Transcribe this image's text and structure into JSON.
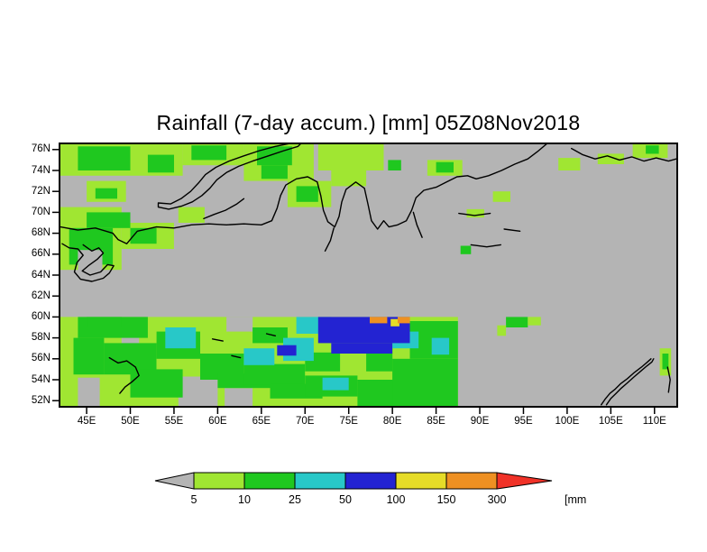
{
  "title": "Rainfall (7-day accum.) [mm] 05Z08Nov2018",
  "axes": {
    "lat": {
      "ticks": [
        {
          "label": "76N",
          "value": 76
        },
        {
          "label": "74N",
          "value": 74
        },
        {
          "label": "72N",
          "value": 72
        },
        {
          "label": "70N",
          "value": 70
        },
        {
          "label": "68N",
          "value": 68
        },
        {
          "label": "66N",
          "value": 66
        },
        {
          "label": "64N",
          "value": 64
        },
        {
          "label": "62N",
          "value": 62
        },
        {
          "label": "60N",
          "value": 60
        },
        {
          "label": "58N",
          "value": 58
        },
        {
          "label": "56N",
          "value": 56
        },
        {
          "label": "54N",
          "value": 54
        },
        {
          "label": "52N",
          "value": 52
        }
      ]
    },
    "lon": {
      "ticks": [
        {
          "label": "45E",
          "value": 45
        },
        {
          "label": "50E",
          "value": 50
        },
        {
          "label": "55E",
          "value": 55
        },
        {
          "label": "60E",
          "value": 60
        },
        {
          "label": "65E",
          "value": 65
        },
        {
          "label": "70E",
          "value": 70
        },
        {
          "label": "75E",
          "value": 75
        },
        {
          "label": "80E",
          "value": 80
        },
        {
          "label": "85E",
          "value": 85
        },
        {
          "label": "90E",
          "value": 90
        },
        {
          "label": "95E",
          "value": 95
        },
        {
          "label": "100E",
          "value": 100
        },
        {
          "label": "105E",
          "value": 105
        },
        {
          "label": "110E",
          "value": 110
        }
      ]
    }
  },
  "legend": {
    "values": [
      "5",
      "10",
      "25",
      "50",
      "100",
      "150",
      "300"
    ],
    "unit": "[mm]",
    "under_color": "#b4b4b4",
    "over_color": "#f03228",
    "segment_colors": [
      "#a0e632",
      "#1fc81f",
      "#28c8c8",
      "#2323d2",
      "#e6dc28",
      "#ee9022"
    ]
  },
  "colors": {
    "background": "#ffffff",
    "frame": "#000000",
    "coastline": "#000000",
    "no_data": "#b4b4b4"
  },
  "palette": {
    "gray": "#b4b4b4",
    "lightgreen": "#a0e632",
    "green": "#1fc81f",
    "cyan": "#28c8c8",
    "blue": "#2323d2",
    "yellow": "#e6dc28",
    "orange": "#ee9022",
    "red": "#f03228"
  },
  "chart_data": {
    "type": "heatmap",
    "title": "Rainfall (7-day accum.) [mm] 05Z08Nov2018",
    "variable": "Rainfall (7-day accum.)",
    "unit": "mm",
    "valid_time": "05Z08Nov2018",
    "x_axis": {
      "tick_labels": [
        "45E",
        "50E",
        "55E",
        "60E",
        "65E",
        "70E",
        "75E",
        "80E",
        "85E",
        "90E",
        "95E",
        "100E",
        "105E",
        "110E"
      ],
      "range_deg_e": [
        42,
        112.5
      ]
    },
    "y_axis": {
      "tick_labels": [
        "76N",
        "74N",
        "72N",
        "70N",
        "68N",
        "66N",
        "64N",
        "62N",
        "60N",
        "58N",
        "56N",
        "54N",
        "52N"
      ],
      "range_deg_n": [
        51.5,
        76.5
      ]
    },
    "color_bins_mm": [
      5,
      10,
      25,
      50,
      100,
      150,
      300
    ],
    "legend_position": "bottom",
    "grid": false,
    "patches_format": [
      "level",
      "lon_min",
      "lon_max",
      "lat_min",
      "lat_max"
    ],
    "patches": [
      [
        "lightgreen",
        42,
        87.5,
        51.5,
        60
      ],
      [
        "gray",
        55.5,
        60,
        51.5,
        54.3
      ],
      [
        "gray",
        44,
        46.5,
        51.5,
        54.2
      ],
      [
        "gray",
        60.8,
        64,
        51.5,
        53.2
      ],
      [
        "gray",
        61,
        64,
        58.6,
        60
      ],
      [
        "gray",
        49,
        51,
        57.4,
        58.8
      ],
      [
        "green",
        43.5,
        47,
        54.5,
        58
      ],
      [
        "green",
        44,
        52,
        58,
        60
      ],
      [
        "green",
        47,
        53,
        54.5,
        57.5
      ],
      [
        "green",
        50,
        56,
        52.3,
        55
      ],
      [
        "green",
        53,
        58,
        56,
        58.6
      ],
      [
        "green",
        58,
        63,
        54,
        56.5
      ],
      [
        "green",
        60,
        66,
        53.2,
        54.6
      ],
      [
        "green",
        63,
        70,
        53.5,
        55.5
      ],
      [
        "green",
        66,
        72,
        52.2,
        53.6
      ],
      [
        "green",
        64,
        68,
        57.5,
        59
      ],
      [
        "green",
        70,
        76,
        52.4,
        54.4
      ],
      [
        "green",
        76,
        81,
        51.5,
        54
      ],
      [
        "green",
        80,
        87.5,
        51.5,
        56
      ],
      [
        "green",
        82,
        87.5,
        56,
        59.6
      ],
      [
        "green",
        77,
        80,
        54.8,
        57
      ],
      [
        "green",
        70,
        74,
        54.8,
        56.6
      ],
      [
        "green",
        45,
        49,
        59,
        60
      ],
      [
        "cyan",
        54,
        57.5,
        57,
        59
      ],
      [
        "cyan",
        63,
        66.5,
        55.4,
        57
      ],
      [
        "cyan",
        67.5,
        71,
        55.8,
        58
      ],
      [
        "cyan",
        72,
        75,
        53,
        54.2
      ],
      [
        "cyan",
        69,
        73,
        58.4,
        60
      ],
      [
        "cyan",
        80,
        83,
        57,
        58.6
      ],
      [
        "cyan",
        84.5,
        86.5,
        56.4,
        58
      ],
      [
        "blue",
        71.5,
        82,
        57.5,
        60
      ],
      [
        "blue",
        73,
        80,
        56.5,
        57.5
      ],
      [
        "blue",
        66.8,
        69,
        56.3,
        57.3
      ],
      [
        "yellow",
        79.8,
        80.8,
        59.1,
        59.8
      ],
      [
        "orange",
        77.4,
        79.4,
        59.4,
        60
      ],
      [
        "orange",
        80.6,
        82,
        59.4,
        60
      ],
      [
        "green",
        93,
        95.5,
        59,
        60
      ],
      [
        "lightgreen",
        95.5,
        97,
        59.2,
        60
      ],
      [
        "lightgreen",
        92,
        93,
        58.2,
        59.2
      ],
      [
        "lightgreen",
        110.6,
        111.9,
        54.4,
        57
      ],
      [
        "green",
        110.9,
        111.6,
        55,
        56.5
      ],
      [
        "lightgreen",
        42,
        56,
        73.5,
        76.5
      ],
      [
        "lightgreen",
        45,
        49.5,
        71,
        73
      ],
      [
        "lightgreen",
        56,
        63,
        74.5,
        76.5
      ],
      [
        "lightgreen",
        63,
        71,
        73,
        76.5
      ],
      [
        "lightgreen",
        71.5,
        79,
        74,
        76.5
      ],
      [
        "lightgreen",
        73,
        77,
        72.5,
        74
      ],
      [
        "lightgreen",
        68,
        73,
        70.5,
        73
      ],
      [
        "lightgreen",
        84,
        88,
        73.5,
        75
      ],
      [
        "lightgreen",
        99,
        101.5,
        74,
        75.2
      ],
      [
        "lightgreen",
        103.5,
        106.5,
        74.6,
        75.6
      ],
      [
        "lightgreen",
        107.5,
        111.5,
        75.2,
        76.5
      ],
      [
        "lightgreen",
        42,
        49,
        64.5,
        70.5
      ],
      [
        "lightgreen",
        49,
        55,
        66.5,
        69
      ],
      [
        "lightgreen",
        55.5,
        58.5,
        69,
        70.5
      ],
      [
        "lightgreen",
        88.5,
        90.5,
        69.5,
        70.3
      ],
      [
        "lightgreen",
        91.5,
        93.5,
        71,
        72
      ],
      [
        "green",
        44,
        50,
        74,
        76.3
      ],
      [
        "green",
        52,
        55,
        73.8,
        75.5
      ],
      [
        "green",
        57,
        61,
        75,
        76.4
      ],
      [
        "green",
        64.5,
        68.5,
        74.5,
        76.3
      ],
      [
        "green",
        65,
        68,
        73.2,
        74.5
      ],
      [
        "green",
        46,
        48.5,
        71.3,
        72.3
      ],
      [
        "green",
        43,
        48,
        65,
        68.5
      ],
      [
        "green",
        45,
        50,
        68.5,
        70
      ],
      [
        "green",
        50,
        53,
        67,
        68.5
      ],
      [
        "green",
        69,
        71.5,
        71,
        72.5
      ],
      [
        "green",
        79.5,
        81,
        74,
        75
      ],
      [
        "green",
        85,
        87,
        73.8,
        74.8
      ],
      [
        "green",
        109,
        110.5,
        75.6,
        76.4
      ],
      [
        "green",
        87.8,
        89,
        66,
        66.8
      ],
      [
        "gray",
        44,
        46.8,
        64,
        66.4
      ]
    ],
    "coastlines": [
      [
        [
          42,
          68.6
        ],
        [
          44,
          68.3
        ],
        [
          46,
          68.5
        ],
        [
          48,
          68.0
        ],
        [
          48.6,
          67.4
        ],
        [
          49.6,
          67.0
        ],
        [
          50.2,
          67.6
        ],
        [
          50.8,
          68.2
        ],
        [
          53,
          68.6
        ],
        [
          55,
          68.5
        ],
        [
          57,
          68.8
        ],
        [
          59,
          68.9
        ],
        [
          61,
          68.8
        ],
        [
          63,
          68.9
        ],
        [
          65,
          68.8
        ],
        [
          66.2,
          69.2
        ],
        [
          66.8,
          70.4
        ],
        [
          67.2,
          71.6
        ],
        [
          67.8,
          72.6
        ],
        [
          69,
          73.2
        ],
        [
          70.3,
          73.4
        ],
        [
          71.4,
          72.9
        ],
        [
          71.8,
          71.6
        ],
        [
          72.1,
          70.2
        ],
        [
          72.6,
          69.1
        ],
        [
          73.4,
          68.6
        ],
        [
          73.9,
          69.6
        ],
        [
          74.2,
          71.0
        ],
        [
          74.7,
          72.2
        ],
        [
          75.8,
          72.9
        ],
        [
          76.8,
          72.3
        ],
        [
          77.2,
          70.8
        ],
        [
          77.6,
          69.2
        ],
        [
          78.3,
          68.4
        ],
        [
          79.0,
          69.2
        ],
        [
          79.6,
          68.6
        ],
        [
          80.6,
          68.8
        ],
        [
          81.6,
          69.2
        ],
        [
          82.2,
          70.2
        ],
        [
          82.7,
          71.4
        ],
        [
          83.6,
          72.1
        ],
        [
          85,
          72.4
        ],
        [
          86.2,
          72.9
        ],
        [
          87.4,
          73.4
        ],
        [
          88.6,
          73.5
        ],
        [
          89.6,
          73.2
        ],
        [
          91,
          73.5
        ],
        [
          92.5,
          74.0
        ],
        [
          94,
          74.6
        ],
        [
          95.5,
          75.1
        ],
        [
          96.6,
          75.8
        ],
        [
          97.6,
          76.5
        ],
        [
          98.4,
          77.0
        ]
      ],
      [
        [
          44.6,
          66.9
        ],
        [
          45.6,
          66.3
        ],
        [
          46.4,
          66.6
        ],
        [
          46.9,
          66.1
        ],
        [
          46.2,
          65.5
        ],
        [
          45.2,
          64.9
        ],
        [
          44.5,
          64.4
        ],
        [
          45.4,
          64.0
        ],
        [
          46.6,
          64.3
        ],
        [
          47.4,
          65.0
        ],
        [
          48.1,
          64.9
        ],
        [
          47.6,
          64.2
        ],
        [
          46.9,
          63.7
        ],
        [
          45.6,
          63.4
        ],
        [
          44.3,
          63.6
        ],
        [
          43.6,
          64.3
        ],
        [
          43.9,
          65.2
        ],
        [
          44.6,
          65.9
        ],
        [
          44.0,
          66.5
        ],
        [
          43.0,
          66.6
        ],
        [
          42.2,
          67.0
        ]
      ],
      [
        [
          53.2,
          70.9
        ],
        [
          54.6,
          70.8
        ],
        [
          55.8,
          71.3
        ],
        [
          56.9,
          72.0
        ],
        [
          57.8,
          72.8
        ],
        [
          58.6,
          73.6
        ],
        [
          59.8,
          74.3
        ],
        [
          61.3,
          74.9
        ],
        [
          63,
          75.4
        ],
        [
          64.8,
          75.9
        ],
        [
          66.6,
          76.3
        ],
        [
          68.4,
          76.6
        ],
        [
          69.8,
          76.8
        ],
        [
          69.2,
          76.3
        ],
        [
          67.6,
          75.9
        ],
        [
          65.8,
          75.4
        ],
        [
          64,
          74.9
        ],
        [
          62.4,
          74.4
        ],
        [
          61,
          73.8
        ],
        [
          59.9,
          73.1
        ],
        [
          59.1,
          72.3
        ],
        [
          58.2,
          71.6
        ],
        [
          57.1,
          71.0
        ],
        [
          55.9,
          70.6
        ],
        [
          54.4,
          70.3
        ],
        [
          53.2,
          70.5
        ],
        [
          53.2,
          70.9
        ]
      ],
      [
        [
          58.4,
          69.4
        ],
        [
          59.6,
          69.8
        ],
        [
          60.9,
          70.2
        ],
        [
          62.2,
          70.8
        ],
        [
          63.0,
          71.3
        ]
      ],
      [
        [
          100.5,
          76.1
        ],
        [
          101.8,
          75.5
        ],
        [
          103.2,
          75.1
        ],
        [
          104.6,
          75.4
        ],
        [
          106,
          75.0
        ],
        [
          107.4,
          75.3
        ],
        [
          108.8,
          74.9
        ],
        [
          110.2,
          75.2
        ],
        [
          111.6,
          74.9
        ],
        [
          112.5,
          75.1
        ]
      ],
      [
        [
          103.9,
          51.6
        ],
        [
          104.4,
          52.2
        ],
        [
          104.9,
          52.7
        ],
        [
          105.5,
          53.1
        ],
        [
          106.1,
          53.6
        ],
        [
          106.9,
          54.1
        ],
        [
          107.7,
          54.7
        ],
        [
          108.5,
          55.2
        ],
        [
          109.2,
          55.7
        ],
        [
          109.6,
          56.0
        ]
      ],
      [
        [
          104.5,
          51.6
        ],
        [
          105.0,
          52.2
        ],
        [
          105.6,
          52.7
        ],
        [
          106.2,
          53.2
        ],
        [
          106.9,
          53.7
        ],
        [
          107.7,
          54.3
        ],
        [
          108.4,
          54.8
        ],
        [
          109.1,
          55.3
        ],
        [
          109.7,
          55.7
        ],
        [
          109.9,
          56.0
        ]
      ],
      [
        [
          47.6,
          56.1
        ],
        [
          48.6,
          55.6
        ],
        [
          49.6,
          55.8
        ],
        [
          50.6,
          55.2
        ],
        [
          51.0,
          54.4
        ],
        [
          50.2,
          53.8
        ],
        [
          49.4,
          53.3
        ],
        [
          48.8,
          52.7
        ]
      ],
      [
        [
          87.6,
          69.9
        ],
        [
          89.4,
          69.7
        ],
        [
          91.2,
          69.9
        ]
      ],
      [
        [
          89.0,
          66.9
        ],
        [
          90.8,
          66.7
        ],
        [
          92.4,
          66.9
        ]
      ],
      [
        [
          59.4,
          57.9
        ],
        [
          60.6,
          57.7
        ]
      ],
      [
        [
          61.6,
          56.3
        ],
        [
          62.6,
          56.1
        ]
      ],
      [
        [
          65.6,
          58.4
        ],
        [
          66.6,
          58.2
        ]
      ],
      [
        [
          73.3,
          68.5
        ],
        [
          72.9,
          67.3
        ],
        [
          72.3,
          66.3
        ]
      ],
      [
        [
          82.4,
          70.0
        ],
        [
          82.8,
          68.8
        ],
        [
          83.4,
          67.6
        ]
      ],
      [
        [
          92.8,
          68.4
        ],
        [
          94.6,
          68.2
        ]
      ],
      [
        [
          111.5,
          55.2
        ],
        [
          111.8,
          54.0
        ],
        [
          111.6,
          52.8
        ]
      ]
    ]
  }
}
